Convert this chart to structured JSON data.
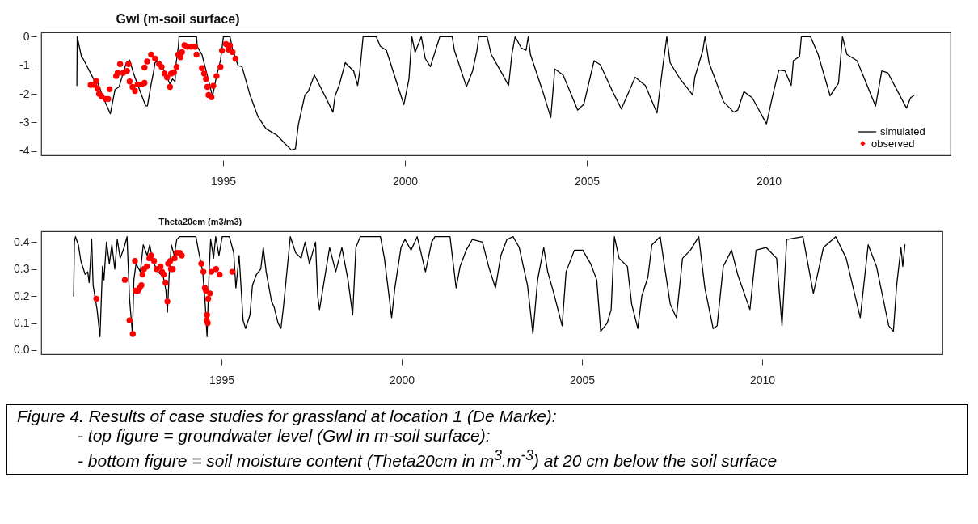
{
  "chart_data": [
    {
      "type": "line",
      "title": "Gwl  (m-soil surface)",
      "xlim": [
        1990,
        2015
      ],
      "xticks": [
        1995,
        2000,
        2005,
        2010
      ],
      "ylim": [
        -4.15,
        0.15
      ],
      "yticks": [
        -4,
        -3,
        -2,
        -1,
        0
      ],
      "legend": "bottom right",
      "series": [
        {
          "name": "simulated",
          "type": "line",
          "color": "#000000",
          "x": [
            1990.98,
            1990.99,
            1991.11,
            1991.15,
            1991.44,
            1991.48,
            1991.51,
            1991.77,
            1991.9,
            1992.03,
            1992.14,
            1992.25,
            1992.34,
            1992.43,
            1992.54,
            1992.73,
            1992.87,
            1992.92,
            1993.02,
            1993.08,
            1993.13,
            1993.18,
            1993.39,
            1993.54,
            1993.61,
            1993.68,
            1993.7,
            1993.77,
            1993.79,
            1994.27,
            1994.29,
            1994.42,
            1994.57,
            1994.71,
            1994.82,
            1994.93,
            1995.01,
            1995.19,
            1995.26,
            1995.41,
            1995.52,
            1995.74,
            1995.96,
            1996.18,
            1996.48,
            1996.7,
            1996.88,
            1996.99,
            1997.07,
            1997.25,
            1997.34,
            1997.51,
            1997.8,
            1998.02,
            1998.08,
            1998.19,
            1998.36,
            1998.47,
            1998.59,
            1998.7,
            1998.76,
            1998.85,
            1999.21,
            1999.32,
            1999.49,
            1999.97,
            2000.11,
            2000.19,
            2000.28,
            2000.45,
            2000.56,
            2000.7,
            2000.96,
            2001.3,
            2001.36,
            2001.69,
            2001.86,
            2001.98,
            2002.03,
            2002.26,
            2002.37,
            2002.66,
            2002.85,
            2002.94,
            2003.03,
            2003.2,
            2003.33,
            2003.39,
            2003.45,
            2003.79,
            2004.01,
            2004.12,
            2004.35,
            2004.75,
            2004.92,
            2005.2,
            2005.37,
            2005.71,
            2005.95,
            2006.33,
            2006.61,
            2006.93,
            2007.08,
            2007.2,
            2007.29,
            2007.57,
            2007.91,
            2007.97,
            2008.19,
            2008.25,
            2008.36,
            2008.76,
            2009.04,
            2009.15,
            2009.32,
            2009.55,
            2009.94,
            2010.11,
            2010.28,
            2010.45,
            2010.62,
            2010.68,
            2010.85,
            2010.9,
            2011.15,
            2011.36,
            2011.69,
            2011.92,
            2012.03,
            2012.15,
            2012.43,
            2012.94,
            2013.11,
            2013.28,
            2013.79,
            2013.9,
            2014.01
          ],
          "values": [
            -1.71,
            0,
            -0.72,
            -0.77,
            -1.48,
            -1.57,
            -1.48,
            -2.32,
            -2.7,
            -1.85,
            -1.76,
            -1.29,
            -0.91,
            -0.82,
            -1.29,
            -1.95,
            -2.42,
            -2.42,
            -1.67,
            -1.29,
            -0.91,
            -0.87,
            -1.2,
            -1.67,
            -1.48,
            -1.57,
            -1.01,
            -0.35,
            0,
            0,
            -0.35,
            -0.63,
            -1.38,
            -2.09,
            -1.38,
            -0.82,
            0,
            0,
            -0.44,
            -1.01,
            -1.05,
            -2.04,
            -2.8,
            -3.22,
            -3.45,
            -3.74,
            -3.97,
            -3.92,
            -3.08,
            -2.04,
            -1.92,
            -1.34,
            -2.07,
            -2.64,
            -2.07,
            -1.71,
            -0.91,
            -1.05,
            -1.2,
            -1.71,
            -1.2,
            0,
            0,
            -0.33,
            -0.48,
            -2.38,
            -1.49,
            0,
            -0.55,
            0,
            -0.77,
            -1.05,
            0,
            0,
            -0.48,
            -1.75,
            -1.2,
            -0.48,
            0,
            0,
            -0.62,
            -1.27,
            -1.71,
            -0.62,
            0,
            -0.4,
            -0.48,
            0,
            -0.62,
            -1.92,
            -2.83,
            -1.13,
            -1.34,
            -2.57,
            -2.36,
            -0.84,
            -0.98,
            -1.92,
            -2.53,
            -1.42,
            -1.71,
            -2.67,
            -1.13,
            0,
            -0.91,
            -1.49,
            -2.04,
            -1.42,
            -0.48,
            0,
            -0.91,
            -2.28,
            -2.64,
            -2.57,
            -1.92,
            -2.14,
            -3.05,
            -2.07,
            -1.17,
            -1.2,
            -1.71,
            -0.84,
            -0.69,
            0,
            0,
            -0.62,
            -2.07,
            -1.63,
            0,
            -0.62,
            -0.84,
            -2.43,
            -1.2,
            -1.27,
            -2.5,
            -2.14,
            -2.04
          ]
        },
        {
          "name": "observed",
          "type": "scatter",
          "color": "#ff0000",
          "marker": "circle",
          "x": [
            1991.36,
            1991.46,
            1991.51,
            1991.55,
            1991.59,
            1991.66,
            1991.77,
            1991.84,
            1991.88,
            1992.06,
            1992.1,
            1992.17,
            1992.25,
            1992.36,
            1992.4,
            1992.43,
            1992.51,
            1992.58,
            1992.65,
            1992.76,
            1992.84,
            1992.84,
            1992.91,
            1993.02,
            1993.13,
            1993.24,
            1993.31,
            1993.39,
            1993.46,
            1993.54,
            1993.57,
            1993.65,
            1993.72,
            1993.77,
            1993.83,
            1993.87,
            1993.94,
            1994.01,
            1994.12,
            1994.23,
            1994.27,
            1994.42,
            1994.48,
            1994.53,
            1994.57,
            1994.6,
            1994.68,
            1994.73,
            1994.82,
            1994.93,
            1994.97,
            1995.08,
            1995.15,
            1995.19,
            1995.26,
            1995.34
          ],
          "values": [
            -1.69,
            -1.69,
            -1.55,
            -1.81,
            -2,
            -2.09,
            -2.18,
            -2.18,
            -1.84,
            -1.38,
            -1.27,
            -0.96,
            -1.27,
            -1.2,
            -0.96,
            -1.57,
            -1.76,
            -1.9,
            -1.67,
            -1.67,
            -1.62,
            -1.08,
            -0.87,
            -0.63,
            -0.77,
            -0.96,
            -1.06,
            -1.29,
            -1.43,
            -1.76,
            -1.29,
            -1.25,
            -1.06,
            -0.63,
            -0.72,
            -0.54,
            -0.3,
            -0.35,
            -0.35,
            -0.35,
            -0.63,
            -1.1,
            -1.29,
            -1.48,
            -1.76,
            -2.04,
            -2.12,
            -1.72,
            -1.38,
            -1.06,
            -0.49,
            -0.26,
            -0.45,
            -0.31,
            -0.54,
            -0.77
          ]
        }
      ]
    },
    {
      "type": "line",
      "title": "Theta20cm (m3/m3)",
      "xlim": [
        1990,
        2015
      ],
      "xticks": [
        1995,
        2000,
        2005,
        2010
      ],
      "ylim": [
        -0.015,
        0.44
      ],
      "yticks": [
        {
          "value": 0,
          "label": "0.0"
        },
        0.1,
        0.2,
        0.3,
        0.4
      ],
      "annotations": [
        "Figure 4. Results of case studies for grassland at location 1 (De Marke):",
        "- top figure = groundwater level (Gwl in m-soil surface):",
        "- bottom figure = soil moisture content (Theta20cm in m$^{3}$.m$^{-3}$) at 20 cm below the soil surface"
      ],
      "series": [
        {
          "type": "line",
          "color": "#000000",
          "x": [
            1990.9,
            1990.92,
            1990.95,
            1991.03,
            1991.1,
            1991.22,
            1991.29,
            1991.33,
            1991.4,
            1991.44,
            1991.55,
            1991.63,
            1991.7,
            1991.74,
            1991.81,
            1991.89,
            1991.96,
            1992.04,
            1992.11,
            1992.19,
            1992.3,
            1992.38,
            1992.45,
            1992.53,
            1992.57,
            1992.63,
            1992.75,
            1992.83,
            1992.94,
            1993.01,
            1993.09,
            1993.24,
            1993.39,
            1993.46,
            1993.5,
            1993.55,
            1993.61,
            1993.69,
            1993.76,
            1993.84,
            1994.29,
            1994.36,
            1994.48,
            1994.55,
            1994.6,
            1994.66,
            1994.7,
            1994.78,
            1994.84,
            1994.93,
            1995.02,
            1995.22,
            1995.34,
            1995.4,
            1995.49,
            1995.6,
            1995.67,
            1995.79,
            1995.86,
            1995.97,
            1996.09,
            1996.16,
            1996.24,
            1996.39,
            1996.46,
            1996.57,
            1996.65,
            1996.72,
            1996.91,
            1997.06,
            1997.21,
            1997.32,
            1997.44,
            1997.61,
            1997.67,
            1997.72,
            1997.89,
            1998,
            1998.17,
            1998.34,
            1998.51,
            1998.64,
            1998.73,
            1998.85,
            1999.41,
            1999.52,
            1999.64,
            1999.72,
            1999.81,
            1999.98,
            2000.09,
            2000.26,
            2000.43,
            2000.66,
            2000.83,
            2000.92,
            2001.34,
            2001.51,
            2001.62,
            2001.79,
            2001.96,
            2002.24,
            2002.41,
            2002.6,
            2002.75,
            2002.92,
            2003.09,
            2003.26,
            2003.49,
            2003.64,
            2003.77,
            2003.94,
            2004.05,
            2004.22,
            2004.45,
            2004.56,
            2004.79,
            2005.02,
            2005.24,
            2005.41,
            2005.52,
            2005.7,
            2005.81,
            2005.9,
            2006.03,
            2006.26,
            2006.38,
            2006.55,
            2006.66,
            2006.83,
            2006.94,
            2007.17,
            2007.28,
            2007.45,
            2007.62,
            2007.79,
            2008.01,
            2008.24,
            2008.41,
            2008.64,
            2008.75,
            2008.92,
            2009.15,
            2009.32,
            2009.66,
            2009.83,
            2010.11,
            2010.4,
            2010.55,
            2010.68,
            2011.13,
            2011.42,
            2011.7,
            2012.04,
            2012.33,
            2012.72,
            2012.94,
            2013.17,
            2013.51,
            2013.64,
            2013.73,
            2013.85,
            2013.9,
            2013.96
          ],
          "values": [
            0.2,
            0.4,
            0.42,
            0.39,
            0.33,
            0.28,
            0.29,
            0.25,
            0.41,
            0.24,
            0.15,
            0.05,
            0.31,
            0.26,
            0.4,
            0.32,
            0.39,
            0.3,
            0.41,
            0.34,
            0.38,
            0.42,
            0.19,
            0.06,
            0.26,
            0.32,
            0.29,
            0.39,
            0.35,
            0.39,
            0.33,
            0.29,
            0.27,
            0.22,
            0.14,
            0.28,
            0.39,
            0.35,
            0.41,
            0.42,
            0.42,
            0.37,
            0.29,
            0.17,
            0.05,
            0.3,
            0.41,
            0.34,
            0.42,
            0.35,
            0.42,
            0.42,
            0.36,
            0.23,
            0.35,
            0.11,
            0.08,
            0.13,
            0.24,
            0.28,
            0.3,
            0.38,
            0.29,
            0.18,
            0.16,
            0.1,
            0.08,
            0.16,
            0.42,
            0.36,
            0.34,
            0.4,
            0.32,
            0.4,
            0.2,
            0.15,
            0.29,
            0.38,
            0.29,
            0.38,
            0.26,
            0.13,
            0.38,
            0.42,
            0.42,
            0.34,
            0.21,
            0.12,
            0.23,
            0.38,
            0.41,
            0.37,
            0.42,
            0.29,
            0.4,
            0.42,
            0.42,
            0.23,
            0.31,
            0.37,
            0.41,
            0.4,
            0.31,
            0.23,
            0.35,
            0.41,
            0.42,
            0.38,
            0.24,
            0.06,
            0.26,
            0.38,
            0.29,
            0.21,
            0.09,
            0.29,
            0.37,
            0.37,
            0.32,
            0.26,
            0.07,
            0.1,
            0.15,
            0.42,
            0.34,
            0.31,
            0.17,
            0.08,
            0.2,
            0.27,
            0.39,
            0.42,
            0.32,
            0.17,
            0.12,
            0.34,
            0.37,
            0.42,
            0.23,
            0.08,
            0.09,
            0.31,
            0.37,
            0.28,
            0.15,
            0.37,
            0.38,
            0.34,
            0.09,
            0.41,
            0.42,
            0.21,
            0.38,
            0.42,
            0.34,
            0.12,
            0.39,
            0.31,
            0.09,
            0.07,
            0.24,
            0.38,
            0.31,
            0.39
          ]
        },
        {
          "type": "scatter",
          "color": "#ff0000",
          "marker": "circle",
          "x": [
            1991.53,
            1992.32,
            1992.45,
            1992.54,
            1992.6,
            1992.62,
            1992.68,
            1992.73,
            1992.78,
            1992.81,
            1992.85,
            1992.93,
            1993,
            1993.05,
            1993.13,
            1993.2,
            1993.31,
            1993.35,
            1993.4,
            1993.45,
            1993.5,
            1993.52,
            1993.58,
            1993.6,
            1993.65,
            1993.7,
            1993.76,
            1993.84,
            1993.9,
            1994.44,
            1994.5,
            1994.54,
            1994.57,
            1994.59,
            1994.6,
            1994.62,
            1994.63,
            1994.68,
            1994.72,
            1994.85,
            1994.95,
            1995.3
          ],
          "values": [
            0.19,
            0.26,
            0.11,
            0.06,
            0.33,
            0.22,
            0.22,
            0.23,
            0.24,
            0.28,
            0.3,
            0.31,
            0.34,
            0.35,
            0.33,
            0.3,
            0.31,
            0.29,
            0.28,
            0.25,
            0.18,
            0.32,
            0.33,
            0.3,
            0.3,
            0.34,
            0.36,
            0.36,
            0.35,
            0.32,
            0.29,
            0.23,
            0.22,
            0.11,
            0.13,
            0.1,
            0.19,
            0.21,
            0.29,
            0.3,
            0.28,
            0.29
          ]
        }
      ]
    }
  ]
}
